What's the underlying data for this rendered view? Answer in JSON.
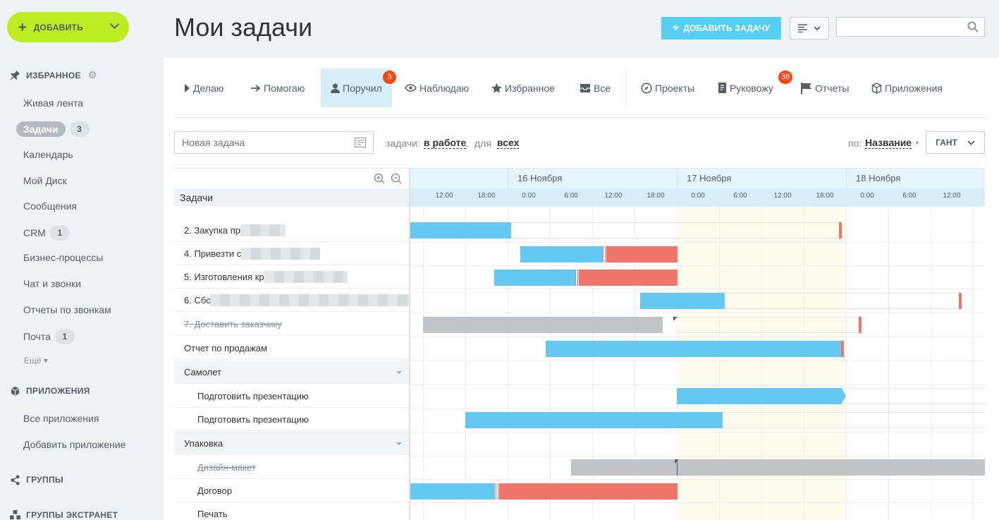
{
  "sidebar": {
    "add_button": "ДОБАВИТЬ",
    "favorites_title": "ИЗБРАННОЕ",
    "items": [
      {
        "label": "Живая лента"
      },
      {
        "label": "Задачи",
        "count": "3"
      },
      {
        "label": "Календарь"
      },
      {
        "label": "Мой Диск"
      },
      {
        "label": "Сообщения"
      },
      {
        "label": "CRM",
        "count": "1"
      },
      {
        "label": "Бизнес-процессы"
      },
      {
        "label": "Чат и звонки"
      },
      {
        "label": "Отчеты по звонкам"
      },
      {
        "label": "Почта",
        "count": "1"
      }
    ],
    "more": "Ещё",
    "apps_title": "ПРИЛОЖЕНИЯ",
    "apps": [
      {
        "label": "Все приложения"
      },
      {
        "label": "Добавить приложение"
      }
    ],
    "groups_title": "ГРУППЫ",
    "extranet_title": "ГРУППЫ ЭКСТРАНЕТ"
  },
  "header": {
    "title": "Мои задачи",
    "add_task": "ДОБАВИТЬ ЗАДАЧУ"
  },
  "tabs": [
    {
      "label": "Делаю"
    },
    {
      "label": "Помогаю"
    },
    {
      "label": "Поручил",
      "badge": "3"
    },
    {
      "label": "Наблюдаю"
    },
    {
      "label": "Избранное"
    },
    {
      "label": "Все"
    },
    {
      "label": "Проекты"
    },
    {
      "label": "Руковожу",
      "badge": "38"
    },
    {
      "label": "Отчеты"
    },
    {
      "label": "Приложения"
    }
  ],
  "filter": {
    "new_task_placeholder": "Новая задача",
    "tasks_label": "задачи:",
    "status": "в работе",
    "for_label": "для",
    "who": "всех",
    "sort_label": "по:",
    "sort_value": "Название",
    "view": "ГАНТ"
  },
  "gantt": {
    "list_header": "Задачи",
    "days": [
      "16 Ноября",
      "17 Ноября",
      "18 Ноября"
    ],
    "hours": [
      "12:00",
      "18:00",
      "0:00",
      "6:00",
      "12:00",
      "18:00",
      "0:00",
      "6:00",
      "12:00",
      "18:00",
      "0:00",
      "6:00",
      "12:00"
    ],
    "rows": [
      {
        "label": "2. Закупка пр"
      },
      {
        "label": "4. Привезти с"
      },
      {
        "label": "5. Изготовления кр"
      },
      {
        "label": "6. Сбо"
      },
      {
        "label": "7. Доставить заказчику"
      },
      {
        "label": "Отчет по продажам"
      },
      {
        "label": "Самолет"
      },
      {
        "label": "Подготовить презентацию"
      },
      {
        "label": "Подготовить презентацию"
      },
      {
        "label": "Упаковка"
      },
      {
        "label": "Дизайн-макет"
      },
      {
        "label": "Договор"
      },
      {
        "label": "Печать"
      }
    ]
  },
  "colors": {
    "accent_green": "#bbed21",
    "accent_blue": "#55d0f3",
    "bar_blue": "#64c8f0",
    "bar_red": "#ef7469",
    "badge": "#f54819"
  }
}
